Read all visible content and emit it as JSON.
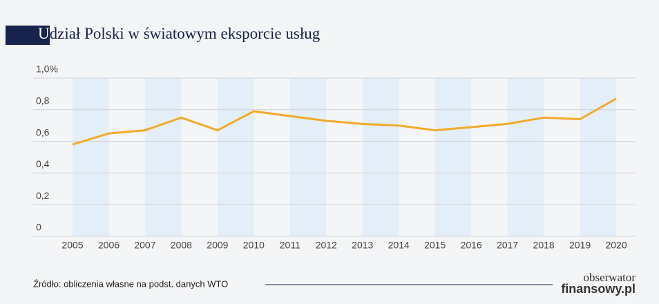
{
  "chart_data": {
    "type": "line",
    "title": "Udział Polski w światowym eksporcie usług",
    "categories": [
      "2005",
      "2006",
      "2007",
      "2008",
      "2009",
      "2010",
      "2011",
      "2012",
      "2013",
      "2014",
      "2015",
      "2016",
      "2017",
      "2018",
      "2019",
      "2020"
    ],
    "series": [
      {
        "name": "Udział Polski",
        "color": "#f2aa2a",
        "values": [
          0.58,
          0.65,
          0.67,
          0.75,
          0.67,
          0.79,
          0.76,
          0.73,
          0.71,
          0.7,
          0.67,
          0.69,
          0.71,
          0.75,
          0.74,
          0.87
        ]
      }
    ],
    "ylim": [
      0,
      1.0
    ],
    "yticks": [
      0,
      {
        "value": 0.2,
        "label": "0,2"
      },
      {
        "value": 0.4,
        "label": "0,4"
      },
      {
        "value": 0.6,
        "label": "0,6"
      },
      {
        "value": 0.8,
        "label": "0,8"
      },
      {
        "value": 1.0,
        "label": "1,0%"
      }
    ],
    "grid": true,
    "source": "Źródło: obliczenia własne na podst. danych WTO",
    "logo": [
      "obserwator",
      "finansowy.pl"
    ]
  }
}
